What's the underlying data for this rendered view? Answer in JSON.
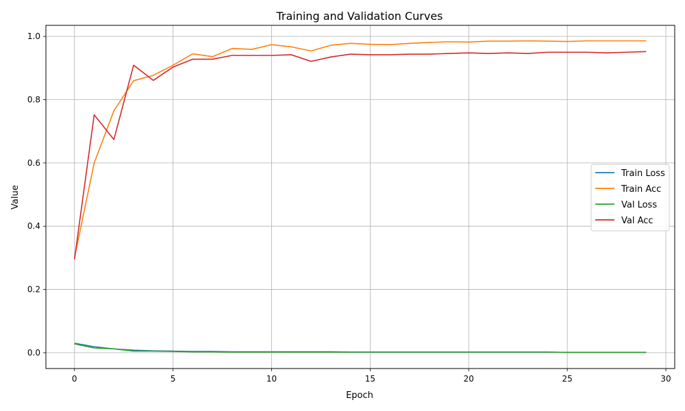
{
  "chart_data": {
    "type": "line",
    "title": "Training and Validation Curves",
    "xlabel": "Epoch",
    "ylabel": "Value",
    "xlim": [
      -1.45,
      30.45
    ],
    "ylim": [
      -0.05,
      1.035
    ],
    "xticks": [
      0,
      5,
      10,
      15,
      20,
      25,
      30
    ],
    "xtick_labels": [
      "0",
      "5",
      "10",
      "15",
      "20",
      "25",
      "30"
    ],
    "yticks": [
      0.0,
      0.2,
      0.4,
      0.6,
      0.8,
      1.0
    ],
    "ytick_labels": [
      "0.0",
      "0.2",
      "0.4",
      "0.6",
      "0.8",
      "1.0"
    ],
    "grid": true,
    "legend_position": "center-right",
    "x": [
      0,
      1,
      2,
      3,
      4,
      5,
      6,
      7,
      8,
      9,
      10,
      11,
      12,
      13,
      14,
      15,
      16,
      17,
      18,
      19,
      20,
      21,
      22,
      23,
      24,
      25,
      26,
      27,
      28,
      29
    ],
    "series": [
      {
        "name": "Train Loss",
        "color": "#1f77b4",
        "values": [
          0.03,
          0.019,
          0.012,
          0.008,
          0.006,
          0.005,
          0.004,
          0.004,
          0.003,
          0.003,
          0.003,
          0.003,
          0.003,
          0.003,
          0.002,
          0.002,
          0.002,
          0.002,
          0.002,
          0.002,
          0.002,
          0.002,
          0.002,
          0.002,
          0.002,
          0.001,
          0.001,
          0.001,
          0.001,
          0.001
        ]
      },
      {
        "name": "Train Acc",
        "color": "#ff7f0e",
        "values": [
          0.3,
          0.6,
          0.765,
          0.86,
          0.877,
          0.909,
          0.945,
          0.936,
          0.962,
          0.959,
          0.974,
          0.967,
          0.954,
          0.972,
          0.978,
          0.975,
          0.974,
          0.978,
          0.981,
          0.983,
          0.982,
          0.985,
          0.985,
          0.986,
          0.985,
          0.984,
          0.986,
          0.986,
          0.986,
          0.986
        ]
      },
      {
        "name": "Val Loss",
        "color": "#2ca02c",
        "values": [
          0.028,
          0.015,
          0.012,
          0.005,
          0.005,
          0.004,
          0.003,
          0.003,
          0.002,
          0.002,
          0.002,
          0.002,
          0.002,
          0.002,
          0.002,
          0.002,
          0.002,
          0.002,
          0.002,
          0.002,
          0.002,
          0.002,
          0.002,
          0.002,
          0.002,
          0.001,
          0.001,
          0.001,
          0.001,
          0.001
        ]
      },
      {
        "name": "Val Acc",
        "color": "#d62728",
        "values": [
          0.295,
          0.752,
          0.674,
          0.909,
          0.861,
          0.903,
          0.928,
          0.928,
          0.94,
          0.94,
          0.94,
          0.942,
          0.921,
          0.935,
          0.944,
          0.942,
          0.942,
          0.944,
          0.944,
          0.946,
          0.948,
          0.946,
          0.948,
          0.946,
          0.95,
          0.95,
          0.95,
          0.948,
          0.95,
          0.952
        ]
      }
    ]
  }
}
